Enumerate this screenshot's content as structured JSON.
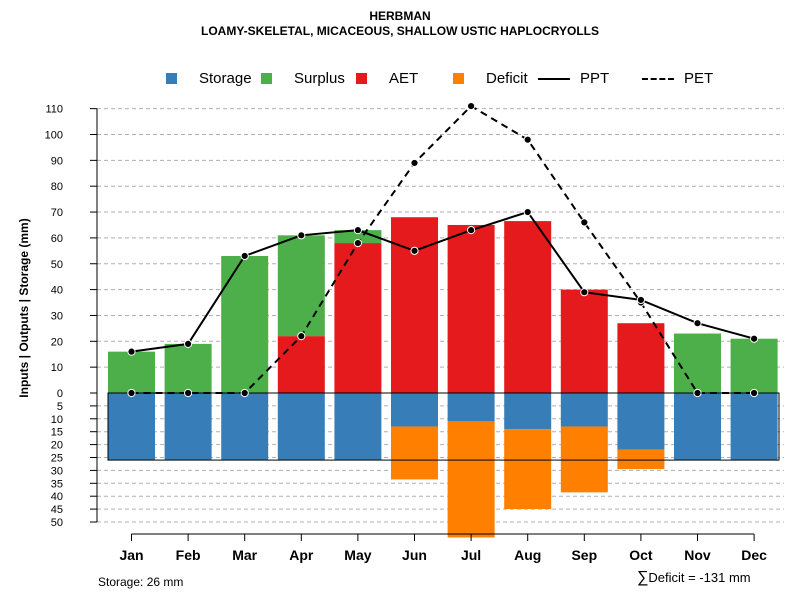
{
  "title": "HERBMAN",
  "subtitle": "LOAMY-SKELETAL, MICACEOUS, SHALLOW USTIC HAPLOCRYOLLS",
  "legend": [
    {
      "key": "storage",
      "label": "Storage",
      "color": "#377EB8"
    },
    {
      "key": "surplus",
      "label": "Surplus",
      "color": "#4DAF4A"
    },
    {
      "key": "aet",
      "label": "AET",
      "color": "#E41A1C"
    },
    {
      "key": "deficit",
      "label": "Deficit",
      "color": "#FF7F00"
    },
    {
      "key": "ppt",
      "label": "PPT",
      "style": "solid"
    },
    {
      "key": "pet",
      "label": "PET",
      "style": "dashed"
    }
  ],
  "chart_data": {
    "type": "bar",
    "categories": [
      "Jan",
      "Feb",
      "Mar",
      "Apr",
      "May",
      "Jun",
      "Jul",
      "Aug",
      "Sep",
      "Oct",
      "Nov",
      "Dec"
    ],
    "ylabel": "Inputs | Outputs | Storage    (mm)",
    "ylim": [
      -50,
      115
    ],
    "yticks_positive": [
      0,
      10,
      20,
      30,
      40,
      50,
      60,
      70,
      80,
      90,
      100,
      110
    ],
    "yticks_negative": [
      5,
      10,
      15,
      20,
      25,
      30,
      35,
      40,
      45,
      50
    ],
    "storage_capacity": 26,
    "series": [
      {
        "name": "AET",
        "values": [
          0,
          0,
          0,
          22,
          58,
          68,
          65,
          66.5,
          40,
          27,
          0,
          0
        ]
      },
      {
        "name": "Surplus",
        "values": [
          16,
          19,
          53,
          39,
          5,
          0,
          0,
          0,
          0,
          0,
          23,
          21
        ]
      },
      {
        "name": "Storage",
        "values": [
          26,
          26,
          26,
          26,
          26,
          13,
          11,
          14,
          13,
          22,
          26,
          26
        ]
      },
      {
        "name": "Deficit",
        "values": [
          0,
          0,
          0,
          0,
          0,
          20.5,
          45,
          31,
          25.5,
          7.5,
          0,
          0
        ]
      },
      {
        "name": "PPT",
        "values": [
          16,
          19,
          53,
          61,
          63,
          55,
          63,
          70,
          39,
          36,
          27,
          21
        ]
      },
      {
        "name": "PET",
        "values": [
          0,
          0,
          0,
          22,
          58,
          89,
          111,
          98,
          66,
          35,
          0,
          0
        ]
      }
    ]
  },
  "footer": {
    "storage_text": "Storage: 26 mm",
    "deficit_symbol": "∑",
    "deficit_text": "Deficit = -131 mm"
  }
}
